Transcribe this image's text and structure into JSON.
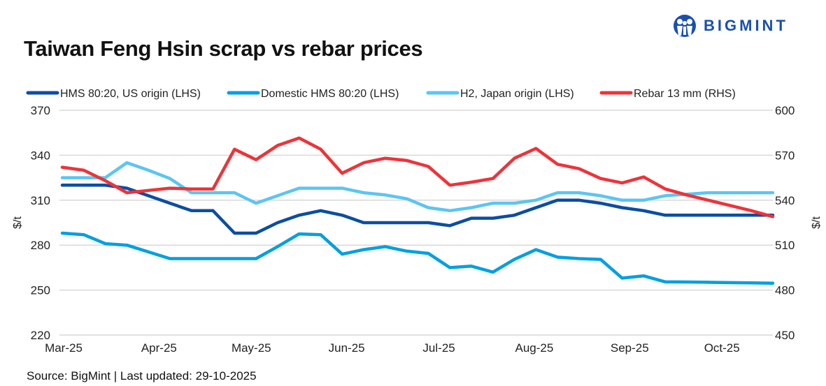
{
  "title": "Taiwan Feng Hsin scrap vs rebar prices",
  "logo": {
    "text": "BIGMINT",
    "color": "#1a4fb0"
  },
  "source": "Source: BigMint |  Last updated: 29-10-2025",
  "chart_data": {
    "type": "line",
    "title": "Taiwan Feng Hsin scrap vs rebar prices",
    "ylabel": "$/t",
    "y2label": "$/t",
    "ylim": [
      220,
      370
    ],
    "y2lim": [
      450,
      600
    ],
    "yticks": [
      220,
      250,
      280,
      310,
      340,
      370
    ],
    "y2ticks": [
      450,
      480,
      510,
      540,
      570,
      600
    ],
    "xticks": [
      {
        "date": "2025-03-01",
        "label": "Mar-25"
      },
      {
        "date": "2025-04-01",
        "label": "Apr-25"
      },
      {
        "date": "2025-05-01",
        "label": "May-25"
      },
      {
        "date": "2025-06-01",
        "label": "Jun-25"
      },
      {
        "date": "2025-07-01",
        "label": "Jul-25"
      },
      {
        "date": "2025-08-01",
        "label": "Aug-25"
      },
      {
        "date": "2025-09-01",
        "label": "Sep-25"
      },
      {
        "date": "2025-10-01",
        "label": "Oct-25"
      }
    ],
    "grid": true,
    "legend_position": "top",
    "x": [
      "2025-03-01",
      "2025-03-08",
      "2025-03-15",
      "2025-03-22",
      "2025-03-29",
      "2025-04-05",
      "2025-04-12",
      "2025-04-19",
      "2025-04-26",
      "2025-05-03",
      "2025-05-10",
      "2025-05-17",
      "2025-05-24",
      "2025-05-31",
      "2025-06-07",
      "2025-06-14",
      "2025-06-21",
      "2025-06-28",
      "2025-07-05",
      "2025-07-12",
      "2025-07-19",
      "2025-07-26",
      "2025-08-02",
      "2025-08-09",
      "2025-08-16",
      "2025-08-23",
      "2025-08-30",
      "2025-09-06",
      "2025-09-13",
      "2025-09-20",
      "2025-09-27",
      "2025-10-04",
      "2025-10-11",
      "2025-10-18"
    ],
    "series": [
      {
        "name": "HMS 80:20, US origin (LHS)",
        "axis": "left",
        "color": "#0b4ea2",
        "values": [
          320,
          320,
          320,
          318,
          313,
          308,
          303,
          303,
          288,
          288,
          295,
          300,
          303,
          300,
          295,
          295,
          295,
          295,
          293,
          298,
          298,
          300,
          305,
          310,
          310,
          308,
          305,
          303,
          300,
          300,
          300,
          300,
          300,
          300
        ]
      },
      {
        "name": "Domestic HMS 80:20 (LHS)",
        "axis": "left",
        "color": "#00a0e0",
        "values": [
          288,
          287,
          281,
          280,
          275.5,
          271,
          271,
          271,
          271,
          271,
          279,
          287.5,
          287,
          274,
          277,
          279,
          276,
          274.5,
          265,
          266,
          262,
          270.5,
          277,
          272,
          271,
          270.5,
          258,
          259.5,
          255.5,
          255.4,
          255.2,
          255,
          254.8,
          254.6
        ]
      },
      {
        "name": "H2, Japan origin (LHS)",
        "axis": "left",
        "color": "#5bc5f2",
        "values": [
          325,
          325,
          325,
          335,
          330,
          324.5,
          315,
          315,
          315,
          308,
          313,
          318,
          318,
          318,
          315,
          313.5,
          311,
          305,
          303,
          305,
          308,
          308,
          310,
          315,
          315,
          313,
          310,
          310,
          313,
          314,
          315,
          315,
          315,
          315
        ]
      },
      {
        "name": "Rebar 13 mm (RHS)",
        "axis": "right",
        "color": "#ee3338",
        "values": [
          562,
          560,
          553,
          545,
          546.5,
          548,
          547.5,
          547.5,
          574,
          567,
          576.5,
          581.5,
          574,
          558,
          565,
          568,
          566.5,
          562.5,
          550,
          552,
          554.5,
          568,
          574.5,
          564,
          561,
          554.5,
          551.5,
          555.5,
          547.5,
          543.5,
          540,
          536.5,
          533,
          529
        ]
      }
    ]
  }
}
